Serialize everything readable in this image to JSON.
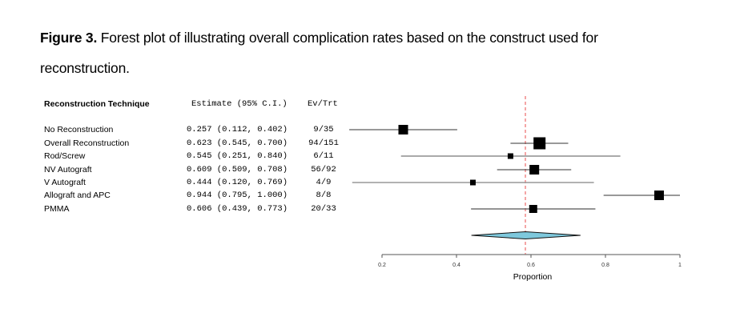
{
  "caption": {
    "figure_label": "Figure 3.",
    "line1": " Forest plot of illustrating overall complication rates based on the construct used for",
    "line2": "reconstruction."
  },
  "chart_data": {
    "type": "forest",
    "columns": {
      "technique_header": "Reconstruction Technique",
      "estimate_header": "Estimate (95% C.I.)",
      "events_header": "Ev/Trt"
    },
    "rows": [
      {
        "label": "No Reconstruction",
        "estimate": 0.257,
        "ci_low": 0.112,
        "ci_high": 0.402,
        "estimate_text": "0.257 (0.112, 0.402)",
        "events": "9/35",
        "line_color": "#333333"
      },
      {
        "label": "Overall Reconstruction",
        "estimate": 0.623,
        "ci_low": 0.545,
        "ci_high": 0.7,
        "estimate_text": "0.623 (0.545, 0.700)",
        "events": "94/151",
        "line_color": "#333333"
      },
      {
        "label": "Rod/Screw",
        "estimate": 0.545,
        "ci_low": 0.251,
        "ci_high": 0.84,
        "estimate_text": "0.545 (0.251, 0.840)",
        "events": "6/11",
        "line_color": "#555555"
      },
      {
        "label": "NV Autograft",
        "estimate": 0.609,
        "ci_low": 0.509,
        "ci_high": 0.708,
        "estimate_text": "0.609 (0.509, 0.708)",
        "events": "56/92",
        "line_color": "#333333"
      },
      {
        "label": "V Autograft",
        "estimate": 0.444,
        "ci_low": 0.12,
        "ci_high": 0.769,
        "estimate_text": "0.444 (0.120, 0.769)",
        "events": "4/9",
        "line_color": "#999999"
      },
      {
        "label": "Allograft and APC",
        "estimate": 0.944,
        "ci_low": 0.795,
        "ci_high": 1.0,
        "estimate_text": "0.944 (0.795, 1.000)",
        "events": "8/8",
        "line_color": "#333333"
      },
      {
        "label": "PMMA",
        "estimate": 0.606,
        "ci_low": 0.439,
        "ci_high": 0.773,
        "estimate_text": "0.606 (0.439, 0.773)",
        "events": "20/33",
        "line_color": "#555555"
      }
    ],
    "summary": {
      "estimate": 0.585,
      "ci_low": 0.44,
      "ci_high": 0.733,
      "fill_color": "#7ec8dc",
      "note": "Pooled summary diamond; values estimated from plot geometry, no printed label"
    },
    "reference_line": {
      "value": 0.585,
      "color": "#f08080",
      "style": "dashed"
    },
    "xlabel": "Proportion",
    "xlim": [
      0.2,
      1.0
    ],
    "xticks": [
      0.2,
      0.4,
      0.6,
      0.8,
      1.0
    ],
    "xtick_labels": [
      "0.2",
      "0.4",
      "0.6",
      "0.8",
      "1"
    ],
    "marker_color": "#000000"
  }
}
